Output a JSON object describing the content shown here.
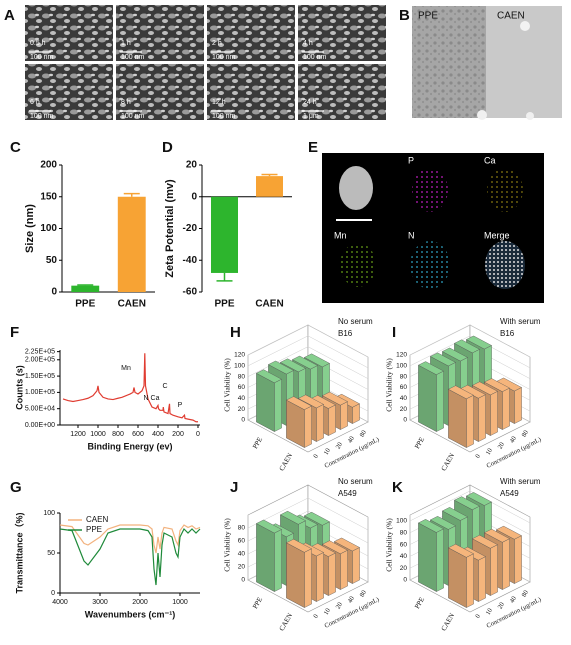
{
  "sem_images": {
    "letter": "A",
    "tiles": [
      {
        "time": "0.5 h",
        "scale": "100 nm"
      },
      {
        "time": "1 h",
        "scale": "100 nm"
      },
      {
        "time": "2 h",
        "scale": "100 nm"
      },
      {
        "time": "4 h",
        "scale": "100 nm"
      },
      {
        "time": "6 h",
        "scale": "100 nm"
      },
      {
        "time": "8 h",
        "scale": "100 nm"
      },
      {
        "time": "12 h",
        "scale": "100 nm"
      },
      {
        "time": "24 h",
        "scale": "1 μm"
      }
    ]
  },
  "tem_images": {
    "letter": "B",
    "labels": [
      "PPE",
      "CAEN"
    ]
  },
  "eds_mapping": {
    "letter": "E",
    "labels": [
      "P",
      "Ca",
      "Mn",
      "N",
      "Merge"
    ]
  },
  "chart_data": [
    {
      "panel": "C",
      "type": "bar",
      "categories": [
        "PPE",
        "CAEN"
      ],
      "values": [
        10,
        150
      ],
      "errors": [
        1,
        5
      ],
      "colors": [
        "#2db52d",
        "#f7a334"
      ],
      "ylabel": "Size (nm)",
      "ylim": [
        0,
        200
      ],
      "yticks": [
        0,
        50,
        100,
        150,
        200
      ]
    },
    {
      "panel": "D",
      "type": "bar",
      "categories": [
        "PPE",
        "CAEN"
      ],
      "values": [
        -48,
        13
      ],
      "errors": [
        5,
        1
      ],
      "colors": [
        "#2db52d",
        "#f7a334"
      ],
      "ylabel": "Zeta Potential (mv)",
      "ylim": [
        -60,
        20
      ],
      "yticks": [
        -60,
        -40,
        -20,
        0,
        20
      ]
    },
    {
      "panel": "F",
      "type": "line",
      "xlabel": "Binding Energy (ev)",
      "ylabel": "Counts (s)",
      "x": [
        1350,
        1300,
        1250,
        1200,
        1150,
        1100,
        1050,
        1010,
        1000,
        990,
        950,
        900,
        850,
        800,
        760,
        720,
        680,
        650,
        640,
        630,
        600,
        560,
        540,
        532,
        525,
        500,
        460,
        420,
        400,
        395,
        380,
        350,
        347,
        340,
        300,
        285,
        280,
        250,
        200,
        160,
        135,
        130,
        100,
        50,
        20,
        0
      ],
      "series": [
        {
          "color": "#e03c31",
          "values": [
            80000,
            75000,
            72000,
            75000,
            78000,
            82000,
            90000,
            105000,
            120000,
            100000,
            85000,
            80000,
            78000,
            82000,
            85000,
            90000,
            95000,
            100000,
            115000,
            100000,
            95000,
            105000,
            120000,
            220000,
            120000,
            80000,
            55000,
            50000,
            60000,
            50000,
            45000,
            45000,
            55000,
            40000,
            35000,
            65000,
            35000,
            30000,
            25000,
            22000,
            30000,
            20000,
            18000,
            15000,
            10000,
            10000
          ]
        }
      ],
      "annotations": [
        "Mn",
        "N",
        "Ca",
        "C",
        "P"
      ],
      "xlim": [
        1380,
        -20
      ],
      "xticks": [
        1200,
        1000,
        800,
        600,
        400,
        200,
        0
      ],
      "ylim": [
        0,
        230000
      ],
      "yticks": [
        {
          "value": 0,
          "label": "0.00E+00"
        },
        {
          "value": 50000,
          "label": "5.00E+04"
        },
        {
          "value": 100000,
          "label": "1.00E+05"
        },
        {
          "value": 150000,
          "label": "1.50E+05"
        },
        {
          "value": 200000,
          "label": "2.00E+05"
        },
        {
          "value": 225000,
          "label": "2.25E+05"
        }
      ]
    },
    {
      "panel": "G",
      "type": "line",
      "xlabel": "Wavenumbers (cm⁻¹)",
      "ylabel": "Transmittance（%)",
      "x": [
        4000,
        3700,
        3400,
        3300,
        3000,
        2800,
        2500,
        2000,
        1800,
        1700,
        1650,
        1600,
        1550,
        1500,
        1450,
        1400,
        1200,
        1100,
        1050,
        1000,
        900,
        800,
        700,
        600,
        500
      ],
      "series": [
        {
          "name": "CAEN",
          "color": "#f2b27e",
          "values": [
            85,
            83,
            62,
            60,
            70,
            80,
            85,
            85,
            84,
            80,
            60,
            50,
            70,
            55,
            75,
            82,
            80,
            65,
            60,
            78,
            85,
            82,
            84,
            80,
            82
          ]
        },
        {
          "name": "PPE",
          "color": "#1f8a3a",
          "values": [
            80,
            78,
            40,
            35,
            55,
            75,
            80,
            80,
            78,
            70,
            30,
            10,
            50,
            20,
            60,
            75,
            70,
            50,
            45,
            70,
            80,
            75,
            80,
            75,
            80
          ]
        }
      ],
      "xlim": [
        4000,
        500
      ],
      "xticks": [
        4000,
        3000,
        2000,
        1000
      ],
      "ylim": [
        0,
        100
      ],
      "yticks": [
        0,
        50,
        100
      ]
    },
    {
      "panel": "H",
      "type": "bar3d",
      "annotations": [
        "No serum",
        "B16"
      ],
      "ylabel": "Cell Viability (%)",
      "xlabel": "Concentration (μg/mL)",
      "categories": [
        "0",
        "10",
        "20",
        "40",
        "80"
      ],
      "series": [
        {
          "name": "PPE",
          "color": "#86cf8e",
          "values": [
            90,
            95,
            88,
            82,
            75
          ]
        },
        {
          "name": "CAEN",
          "color": "#f5b57c",
          "values": [
            70,
            62,
            50,
            45,
            30
          ]
        }
      ],
      "ylim": [
        0,
        120
      ],
      "yticks": [
        0,
        20,
        40,
        60,
        80,
        100,
        120
      ]
    },
    {
      "panel": "I",
      "type": "bar3d",
      "annotations": [
        "With serum",
        "B16"
      ],
      "ylabel": "Cell Viability (%)",
      "xlabel": "Concentration (μg/mL)",
      "categories": [
        "0",
        "10",
        "20",
        "40",
        "80"
      ],
      "series": [
        {
          "name": "PPE",
          "color": "#86cf8e",
          "values": [
            105,
            110,
            108,
            112,
            108
          ]
        },
        {
          "name": "CAEN",
          "color": "#f5b57c",
          "values": [
            90,
            80,
            75,
            70,
            60
          ]
        }
      ],
      "ylim": [
        0,
        120
      ],
      "yticks": [
        0,
        20,
        40,
        60,
        80,
        100,
        120
      ]
    },
    {
      "panel": "J",
      "type": "bar3d",
      "annotations": [
        "No serum",
        "A549"
      ],
      "ylabel": "Cell Viability (%)",
      "xlabel": "Concentration (μg/mL)",
      "categories": [
        "0",
        "10",
        "20",
        "40",
        "80"
      ],
      "series": [
        {
          "name": "PPE",
          "color": "#86cf8e",
          "values": [
            90,
            75,
            85,
            70,
            65
          ]
        },
        {
          "name": "CAEN",
          "color": "#f5b57c",
          "values": [
            85,
            70,
            60,
            55,
            50
          ]
        }
      ],
      "ylim": [
        0,
        100
      ],
      "yticks": [
        0,
        20,
        40,
        60,
        80
      ]
    },
    {
      "panel": "K",
      "type": "bar3d",
      "annotations": [
        "With serum",
        "A549"
      ],
      "ylabel": "Cell Viability (%)",
      "xlabel": "Concentration (μg/mL)",
      "categories": [
        "0",
        "10",
        "20",
        "40",
        "80"
      ],
      "series": [
        {
          "name": "PPE",
          "color": "#86cf8e",
          "values": [
            100,
            95,
            100,
            108,
            105
          ]
        },
        {
          "name": "CAEN",
          "color": "#f5b57c",
          "values": [
            85,
            70,
            80,
            80,
            75
          ]
        }
      ],
      "ylim": [
        0,
        110
      ],
      "yticks": [
        0,
        20,
        40,
        60,
        80,
        100
      ]
    }
  ]
}
